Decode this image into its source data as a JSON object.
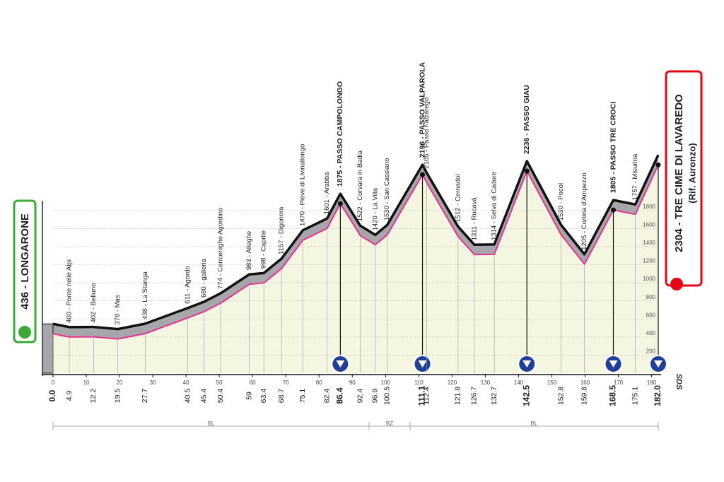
{
  "chart_data": {
    "type": "elevation-profile",
    "start_label": "436 - LONGARONE",
    "finish_label": "2304 - TRE CIME DI LAVAREDO",
    "finish_sublabel": "(Rif. Auronzo)",
    "x": [
      {
        "value": 0,
        "label": "0.0"
      },
      4.9,
      12.2,
      19.5,
      27.7,
      40.5,
      45.4,
      50.4,
      59.0,
      63.4,
      68.7,
      75.1,
      82.4,
      86.4,
      92.4,
      96.9,
      100.5,
      111.1,
      112.4,
      121.8,
      126.7,
      132.7,
      142.5,
      152.8,
      159.8,
      168.5,
      175.1,
      {
        "value": 182,
        "label": "182.0"
      }
    ],
    "values": [
      436,
      400,
      402,
      378,
      438,
      611,
      680,
      774,
      983,
      998,
      1157,
      1470,
      1601,
      1875,
      1522,
      1420,
      1530,
      2196,
      2105,
      1512,
      1311,
      1314,
      2236,
      1530,
      1205,
      1805,
      1757,
      2304
    ],
    "labels": [
      null,
      "400 - Ponte nelle Alpi",
      "402 - Belluno",
      "378 - Mas",
      "438 - La Stanga",
      "611 - Agordo",
      "680 - galleria",
      "774 - Cencenighe Agordino",
      "983 - Alleghe",
      "998 - Caprile",
      "1157 - Digonera",
      "1470 - Pieve di Livinallongo",
      "1601 - Arabba",
      "1875 - PASSO CAMPOLONGO",
      "1522 - Corvara in Badia",
      "1420 - La Villa",
      "1530 - San Cassiano",
      "2196 - PASSO VALPAROLA",
      "2105 - Passo Falzarego",
      "1512 - Cernadoi",
      "1311 - Rucavà",
      "1314 - Selva di Cadore",
      "2236 - PASSO GIAU",
      "1530 - Pocol",
      "1205 - Cortina d'Ampezzo",
      "1805 - PASSO TRE CROCI",
      "1757 - Misurina",
      null
    ],
    "summit": [
      false,
      false,
      false,
      false,
      false,
      false,
      false,
      false,
      false,
      false,
      false,
      false,
      false,
      true,
      false,
      false,
      false,
      true,
      false,
      false,
      false,
      false,
      true,
      false,
      false,
      true,
      false,
      true
    ],
    "xlim": [
      0,
      182
    ],
    "xticks": [
      0,
      10,
      20,
      30,
      40,
      50,
      60,
      70,
      80,
      90,
      100,
      110,
      120,
      130,
      140,
      150,
      160,
      170,
      180
    ],
    "ylim": [
      0,
      2400
    ],
    "yticks": [
      200,
      400,
      600,
      800,
      1000,
      1200,
      1400,
      1600,
      1800
    ],
    "regions": [
      "BL",
      "BZ",
      "BL"
    ],
    "credit": "SDS",
    "line_color": "#e5338f",
    "band_color": "#a7a6ab",
    "fill_color": "#f4f6e1"
  }
}
